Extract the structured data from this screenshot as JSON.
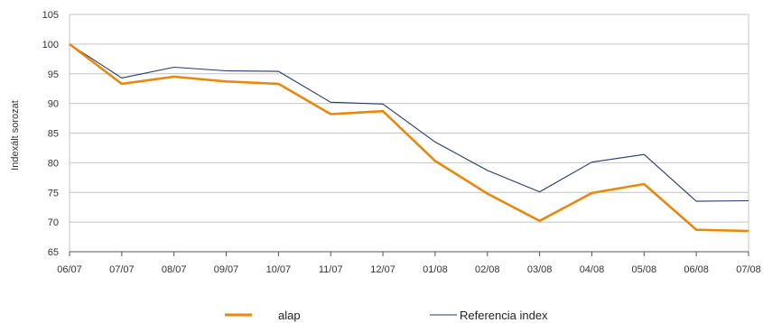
{
  "chart_data": {
    "type": "line",
    "ylabel": "Indexált sorozat",
    "xlabel": "",
    "ylim": [
      65,
      105
    ],
    "yticks": [
      "65",
      "70",
      "75",
      "80",
      "85",
      "90",
      "95",
      "100",
      "105"
    ],
    "categories": [
      "06/07",
      "07/07",
      "08/07",
      "09/07",
      "10/07",
      "11/07",
      "12/07",
      "01/08",
      "02/08",
      "03/08",
      "04/08",
      "05/08",
      "06/08",
      "07/08"
    ],
    "series": [
      {
        "name": "alap",
        "color": "#E8880E",
        "values": [
          100,
          93.3,
          94.5,
          93.7,
          93.3,
          88.2,
          88.7,
          80.3,
          74.8,
          70.2,
          74.9,
          76.4,
          68.7,
          68.5
        ]
      },
      {
        "name": "Referencia index",
        "color": "#1F3C6E",
        "values": [
          100,
          94.3,
          96.1,
          95.5,
          95.4,
          90.2,
          89.9,
          83.5,
          78.7,
          75.1,
          80.1,
          81.4,
          73.5,
          73.6
        ]
      }
    ],
    "grid": true,
    "legend_position": "bottom-center"
  }
}
